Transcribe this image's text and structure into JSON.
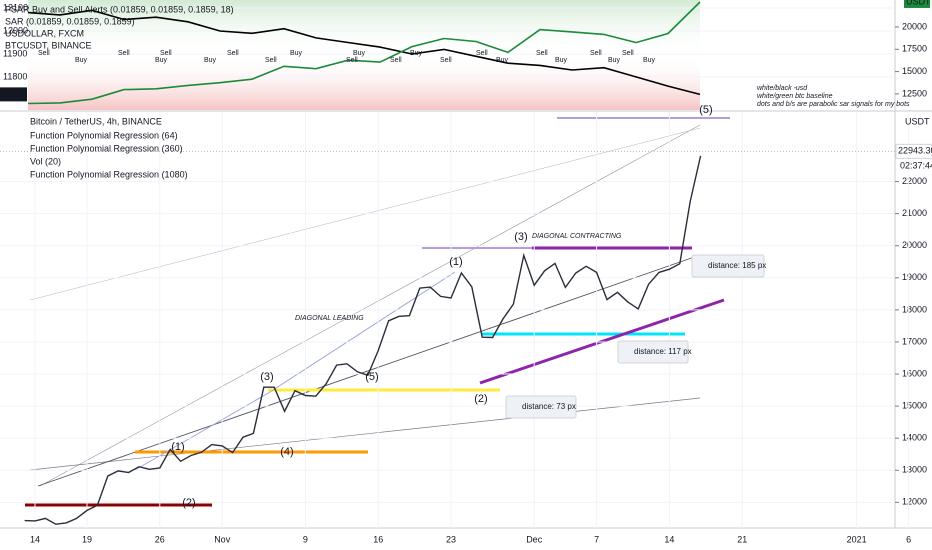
{
  "chart_data": [
    {
      "type": "line",
      "title": "Bitcoin / TetherUS, 4h, BINANCE",
      "indicators": [
        "Function Polynomial Regression (64)",
        "Function Polynomial Regression (360)",
        "Vol (20)",
        "Function Polynomial Regression (1080)"
      ],
      "categories": [
        null,
        "14",
        null,
        null,
        null,
        null,
        "19",
        null,
        null,
        null,
        null,
        null,
        null,
        "26",
        null,
        null,
        null,
        null,
        null,
        "Nov",
        null,
        null,
        null,
        null,
        null,
        null,
        null,
        "9",
        null,
        null,
        null,
        null,
        null,
        null,
        "16",
        null,
        null,
        null,
        null,
        null,
        null,
        "23",
        null,
        null,
        null,
        null,
        null,
        null,
        null,
        "Dec",
        null,
        null,
        null,
        null,
        null,
        "7",
        null,
        null,
        null,
        null,
        null,
        null,
        "14",
        null,
        null,
        null,
        null,
        null,
        null,
        "21",
        null,
        null,
        null,
        null,
        null,
        null,
        null,
        null,
        null,
        null,
        "2021",
        null,
        null,
        null,
        null,
        "6"
      ],
      "values": [
        11430,
        11420,
        11500,
        11320,
        11360,
        11500,
        11750,
        11910,
        12820,
        12980,
        12930,
        13110,
        13030,
        13070,
        13650,
        13280,
        13460,
        13560,
        13800,
        13760,
        13550,
        14030,
        14150,
        15590,
        15590,
        14840,
        15480,
        15330,
        15310,
        15700,
        16280,
        16320,
        16070,
        15960,
        16730,
        17660,
        17800,
        17820,
        18680,
        18710,
        18420,
        18370,
        19150,
        18720,
        17150,
        17140,
        17720,
        18180,
        19700,
        18770,
        19220,
        19450,
        18700,
        19150,
        19360,
        19170,
        18320,
        18550,
        18250,
        18030,
        18800,
        19170,
        19270,
        19440,
        21380,
        22800,
        null,
        null,
        null,
        null,
        null,
        null,
        null,
        null,
        null,
        null,
        null,
        null,
        null,
        null,
        null,
        null,
        null,
        null,
        null,
        null
      ],
      "color": "#2a2e39",
      "ylim": [
        11200,
        24170
      ],
      "yticks": [
        12000,
        13000,
        14000,
        15000,
        16000,
        17000,
        18000,
        19000,
        20000,
        21000,
        22000
      ],
      "grid": true,
      "currency": "USDT",
      "last_price": {
        "value": 22943.3,
        "label": "22943.30"
      },
      "countdown": "02:37:44",
      "annotations": [
        "DIAGONAL LEADING",
        "DIAGONAL CONTRACTING"
      ],
      "waves": [
        "(1)",
        "(2)",
        "(3)",
        "(4)",
        "(5)",
        "(1)",
        "(2)",
        "(3)",
        "(4)",
        "(5)"
      ],
      "distances": [
        "distance: 185 px",
        "distance: 117 px",
        "distance: 73 px"
      ]
    },
    {
      "type": "line",
      "indicators": [
        "PSAR Buy and Sell Alerts (0.01859, 0.01859, 0.1859, 18)",
        "SAR (0.01859, 0.01859, 0.1859)"
      ],
      "series": [
        {
          "name": "USDOLLAR, FXCM",
          "color": "#000000",
          "values": [
            12080,
            12070,
            12090,
            12050,
            12060,
            12040,
            12000,
            11990,
            12010,
            11970,
            11950,
            11930,
            11900,
            11920,
            11890,
            11860,
            11850,
            11830,
            11840,
            11800,
            11760,
            11724
          ]
        },
        {
          "name": "BTCUSDT, BINANCE",
          "color": "#1b8a3a",
          "axis": "y2",
          "values": [
            11430,
            11500,
            11910,
            12980,
            13070,
            13460,
            13760,
            14150,
            15590,
            15330,
            16280,
            16070,
            17800,
            18710,
            18370,
            17150,
            19700,
            19450,
            19170,
            18250,
            19270,
            22800
          ]
        }
      ],
      "ylim": [
        11656,
        12135
      ],
      "yticks": [
        11800,
        11900,
        12000,
        12100
      ],
      "y2lim": [
        10700,
        23020
      ],
      "y2ticks": [
        12500,
        15000,
        17500,
        20000
      ],
      "grid": true,
      "currency": "USDT",
      "signals": [
        "Sell",
        "Buy",
        "Sell",
        "Buy",
        "Sell",
        "Buy",
        "Sell",
        "Sell",
        "Buy",
        "Sell",
        "Buy",
        "Sell",
        "Buy",
        "Sell",
        "Sell",
        "Buy",
        "Sell",
        "Buy",
        "Sell",
        "Buy",
        "Sell",
        "Buy"
      ],
      "notes": [
        "white/black -usd",
        "white/green btc baseline",
        "dots and b/s are parabolic sar signals for my bots"
      ]
    }
  ]
}
